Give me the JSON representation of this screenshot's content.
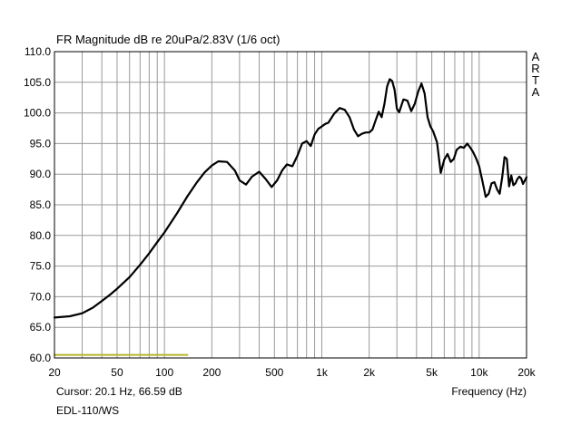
{
  "chart_data": {
    "type": "line",
    "title": "FR Magnitude dB re 20uPa/2.83V (1/6 oct)",
    "xlabel": "Frequency (Hz)",
    "ylabel": "",
    "xscale": "log",
    "xlim": [
      20,
      20000
    ],
    "ylim": [
      60,
      110
    ],
    "grid": true,
    "x_ticks": [
      "20",
      "50",
      "100",
      "200",
      "500",
      "1k",
      "2k",
      "5k",
      "10k",
      "20k"
    ],
    "x_tick_values": [
      20,
      50,
      100,
      200,
      500,
      1000,
      2000,
      5000,
      10000,
      20000
    ],
    "y_ticks": [
      "60.0",
      "65.0",
      "70.0",
      "75.0",
      "80.0",
      "85.0",
      "90.0",
      "95.0",
      "100.0",
      "105.0",
      "110.0"
    ],
    "y_tick_values": [
      60,
      65,
      70,
      75,
      80,
      85,
      90,
      95,
      100,
      105,
      110
    ],
    "series": [
      {
        "color": "#000000",
        "x": [
          20,
          25,
          30,
          35,
          40,
          45,
          50,
          60,
          70,
          80,
          90,
          100,
          120,
          140,
          160,
          180,
          200,
          220,
          250,
          280,
          300,
          330,
          360,
          400,
          440,
          480,
          520,
          560,
          600,
          650,
          700,
          750,
          800,
          850,
          900,
          950,
          1000,
          1050,
          1100,
          1200,
          1300,
          1400,
          1500,
          1600,
          1700,
          1800,
          1900,
          2000,
          2100,
          2200,
          2300,
          2400,
          2500,
          2600,
          2700,
          2800,
          2900,
          3000,
          3100,
          3300,
          3500,
          3700,
          3900,
          4100,
          4300,
          4500,
          4700,
          4900,
          5100,
          5400,
          5700,
          6000,
          6300,
          6600,
          6900,
          7200,
          7600,
          8000,
          8400,
          8800,
          9200,
          9600,
          10000,
          10500,
          11000,
          11500,
          12000,
          12500,
          13000,
          13500,
          14000,
          14500,
          15000,
          15500,
          16000,
          16500,
          17000,
          17500,
          18000,
          18500,
          19000,
          20000
        ],
        "values": [
          66.6,
          66.8,
          67.3,
          68.2,
          69.3,
          70.3,
          71.3,
          73.2,
          75.2,
          77.1,
          78.9,
          80.5,
          83.6,
          86.4,
          88.6,
          90.3,
          91.4,
          92.1,
          92.0,
          90.6,
          89.0,
          88.3,
          89.6,
          90.4,
          89.2,
          87.9,
          89.0,
          90.6,
          91.6,
          91.3,
          93.0,
          95.0,
          95.4,
          94.6,
          96.5,
          97.4,
          97.8,
          98.2,
          98.4,
          99.9,
          100.8,
          100.5,
          99.3,
          97.3,
          96.2,
          96.6,
          96.8,
          96.8,
          97.3,
          98.8,
          100.2,
          99.3,
          101.5,
          104.3,
          105.5,
          105.2,
          103.8,
          100.7,
          100.1,
          102.2,
          102.0,
          100.3,
          101.5,
          103.5,
          104.8,
          103.2,
          99.3,
          97.8,
          97.0,
          95.2,
          90.2,
          92.4,
          93.3,
          92.0,
          92.5,
          94.0,
          94.5,
          94.3,
          95.0,
          94.3,
          93.5,
          92.5,
          91.3,
          88.8,
          86.3,
          86.8,
          88.5,
          88.7,
          87.5,
          86.8,
          89.5,
          92.8,
          92.5,
          88.0,
          89.8,
          88.2,
          88.5,
          89.2,
          89.6,
          89.3,
          88.4,
          89.5
        ]
      },
      {
        "color": "#b5b52a",
        "x": [
          20,
          140
        ],
        "values": [
          60.5,
          60.5
        ]
      }
    ]
  },
  "header": {
    "title": "FR Magnitude dB re 20uPa/2.83V (1/6 oct)",
    "brand": "ARTA"
  },
  "footer": {
    "cursor": "Cursor: 20.1 Hz, 66.59 dB",
    "xlabel": "Frequency (Hz)",
    "device": "EDL-110/WS"
  },
  "colors": {
    "grid": "#9a9a9a",
    "frame": "#000000",
    "curve": "#000000",
    "marker": "#b5b52a"
  }
}
